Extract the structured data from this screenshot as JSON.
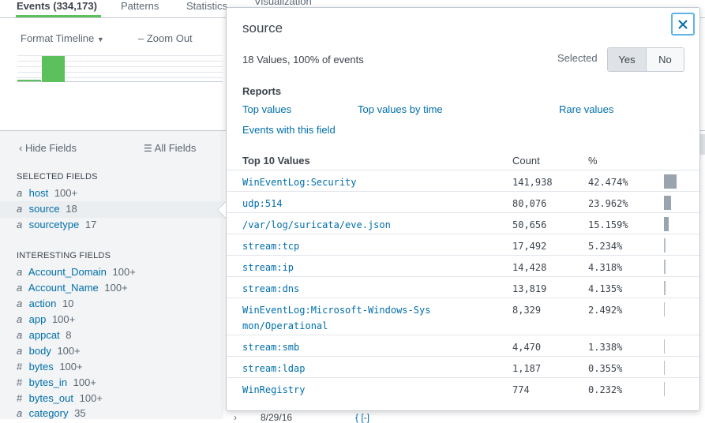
{
  "tabs": [
    {
      "label": "Events (334,173)"
    },
    {
      "label": "Patterns"
    },
    {
      "label": "Statistics"
    },
    {
      "label": "Visualization"
    }
  ],
  "timeline": {
    "format_label": "Format Timeline",
    "zoom_out_label": "Zoom Out"
  },
  "sidebar": {
    "hide_fields_label": "Hide Fields",
    "all_fields_label": "All Fields",
    "selected_heading": "SELECTED FIELDS",
    "selected_fields": [
      {
        "type": "a",
        "name": "host",
        "count": "100+"
      },
      {
        "type": "a",
        "name": "source",
        "count": "18"
      },
      {
        "type": "a",
        "name": "sourcetype",
        "count": "17"
      }
    ],
    "interesting_heading": "INTERESTING FIELDS",
    "interesting_fields": [
      {
        "type": "a",
        "name": "Account_Domain",
        "count": "100+"
      },
      {
        "type": "a",
        "name": "Account_Name",
        "count": "100+"
      },
      {
        "type": "a",
        "name": "action",
        "count": "10"
      },
      {
        "type": "a",
        "name": "app",
        "count": "100+"
      },
      {
        "type": "a",
        "name": "appcat",
        "count": "8"
      },
      {
        "type": "a",
        "name": "body",
        "count": "100+"
      },
      {
        "type": "#",
        "name": "bytes",
        "count": "100+"
      },
      {
        "type": "#",
        "name": "bytes_in",
        "count": "100+"
      },
      {
        "type": "#",
        "name": "bytes_out",
        "count": "100+"
      },
      {
        "type": "a",
        "name": "category",
        "count": "35"
      }
    ]
  },
  "events_partial": {
    "chevron": "›",
    "time": "8/29/16",
    "brace": "{ [-]"
  },
  "popover": {
    "title": "source",
    "summary": "18 Values, 100% of events",
    "selected_label": "Selected",
    "yes_label": "Yes",
    "no_label": "No",
    "reports_heading": "Reports",
    "report_links": {
      "top_values": "Top values",
      "top_values_by_time": "Top values by time",
      "rare_values": "Rare values",
      "events_with_field": "Events with this field"
    },
    "table": {
      "col_value": "Top 10 Values",
      "col_count": "Count",
      "col_pct": "%",
      "rows": [
        {
          "value": "WinEventLog:Security",
          "count": "141,938",
          "pct": "42.474%",
          "share": 0.42474
        },
        {
          "value": "udp:514",
          "count": "80,076",
          "pct": "23.962%",
          "share": 0.23962
        },
        {
          "value": "/var/log/suricata/eve.json",
          "count": "50,656",
          "pct": "15.159%",
          "share": 0.15159
        },
        {
          "value": "stream:tcp",
          "count": "17,492",
          "pct": "5.234%",
          "share": 0.05234
        },
        {
          "value": "stream:ip",
          "count": "14,428",
          "pct": "4.318%",
          "share": 0.04318
        },
        {
          "value": "stream:dns",
          "count": "13,819",
          "pct": "4.135%",
          "share": 0.04135
        },
        {
          "value": "WinEventLog:Microsoft-Windows-Sysmon/Operational",
          "count": "8,329",
          "pct": "2.492%",
          "share": 0.02492
        },
        {
          "value": "stream:smb",
          "count": "4,470",
          "pct": "1.338%",
          "share": 0.01338
        },
        {
          "value": "stream:ldap",
          "count": "1,187",
          "pct": "0.355%",
          "share": 0.00355
        },
        {
          "value": "WinRegistry",
          "count": "774",
          "pct": "0.232%",
          "share": 0.00232
        }
      ]
    }
  },
  "colors": {
    "accent_green": "#5cc05c",
    "link_blue": "#006eaa",
    "bar_gray": "#9aa4ae",
    "focus_blue": "#5fb3e6"
  }
}
